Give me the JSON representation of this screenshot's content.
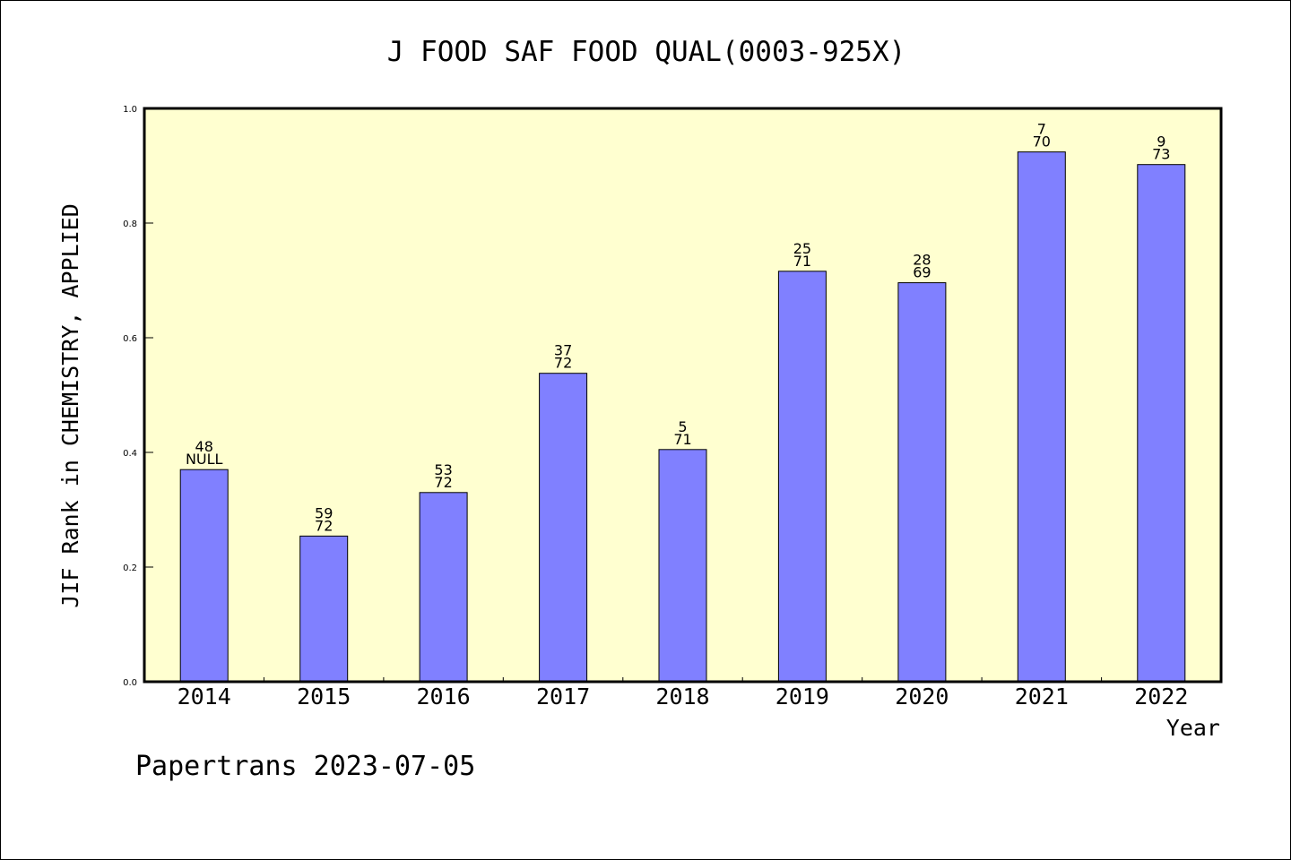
{
  "colors": {
    "plot_background": "#ffffd0",
    "bar_fill": "#8080ff",
    "bar_stroke": "#000000",
    "axis": "#000000"
  },
  "footer": {
    "text": "Papertrans 2023-07-05"
  },
  "chart_data": {
    "type": "bar",
    "title": "J FOOD SAF FOOD QUAL(0003-925X)",
    "xlabel": "Year",
    "ylabel": "JIF Rank in CHEMISTRY, APPLIED",
    "ylim": [
      0,
      1.0
    ],
    "yticks": [
      "0.0",
      "0.2",
      "0.4",
      "0.6",
      "0.8",
      "1.0"
    ],
    "grid": false,
    "categories": [
      "2014",
      "2015",
      "2016",
      "2017",
      "2018",
      "2019",
      "2020",
      "2021",
      "2022"
    ],
    "values": [
      0.37,
      0.254,
      0.33,
      0.538,
      0.405,
      0.716,
      0.696,
      0.924,
      0.902
    ],
    "labels_top": [
      "48",
      "59",
      "53",
      "37",
      "5",
      "25",
      "28",
      "7",
      "9"
    ],
    "labels_bottom": [
      "NULL",
      "72",
      "72",
      "72",
      "71",
      "71",
      "69",
      "70",
      "73"
    ]
  }
}
